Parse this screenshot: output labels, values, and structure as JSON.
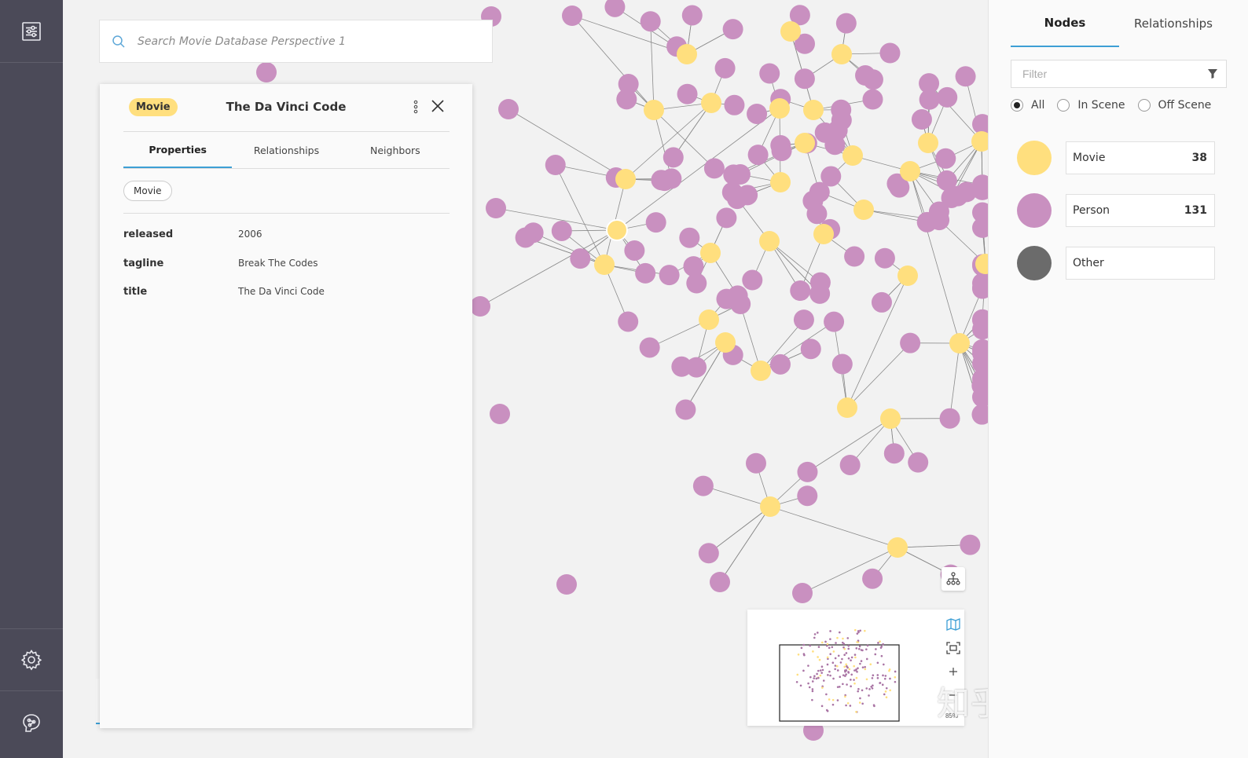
{
  "search": {
    "placeholder": "Search Movie Database Perspective 1"
  },
  "inspector": {
    "badge": "Movie",
    "title": "The Da Vinci Code",
    "tabs": [
      "Properties",
      "Relationships",
      "Neighbors"
    ],
    "label_chip": "Movie",
    "properties": [
      {
        "key": "released",
        "value": "2006"
      },
      {
        "key": "tagline",
        "value": "Break The Codes"
      },
      {
        "key": "title",
        "value": "The Da Vinci Code"
      }
    ]
  },
  "minimap": {
    "zoom": "85%"
  },
  "watermark": "知乎 @马东什么",
  "panel": {
    "tabs": [
      "Nodes",
      "Relationships"
    ],
    "filter_placeholder": "Filter",
    "scope_options": [
      "All",
      "In Scene",
      "Off Scene"
    ],
    "selected_scope": "All",
    "categories": [
      {
        "name": "Movie",
        "count": "38",
        "color": "#ffdf7e"
      },
      {
        "name": "Person",
        "count": "131",
        "color": "#c990c0"
      },
      {
        "name": "Other",
        "count": "",
        "color": "#6b6b6b"
      }
    ]
  },
  "colors": {
    "accent": "#3d9fd5",
    "movie": "#ffdf7e",
    "person": "#c990c0",
    "rail": "#4b4a58"
  }
}
